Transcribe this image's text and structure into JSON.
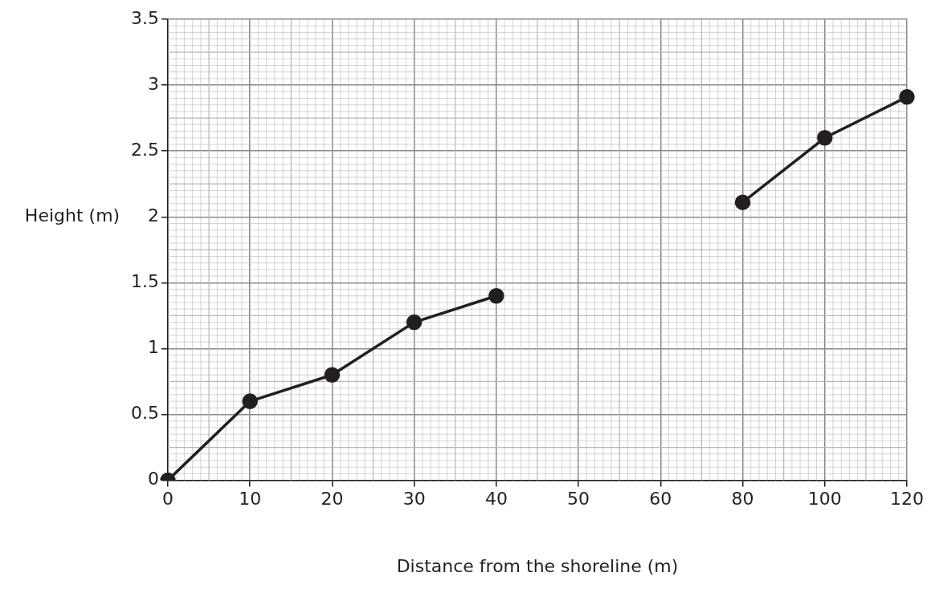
{
  "chart_data": {
    "type": "line",
    "xlabel": "Distance from the shoreline (m)",
    "ylabel": "Height (m)",
    "categories": [
      "0",
      "10",
      "20",
      "30",
      "40",
      "50",
      "60",
      "80",
      "100",
      "120"
    ],
    "series": [
      {
        "color": "#231f20",
        "values": [
          0,
          0.6,
          0.8,
          1.2,
          1.4,
          null,
          null,
          2.11,
          2.6,
          2.91
        ]
      }
    ],
    "ylim": [
      0,
      3.5
    ],
    "yticks": [
      0,
      0.5,
      1,
      1.5,
      2,
      2.5,
      3,
      3.5
    ],
    "grid": true,
    "legend": false,
    "marker": "circle",
    "line_style": "solid"
  }
}
